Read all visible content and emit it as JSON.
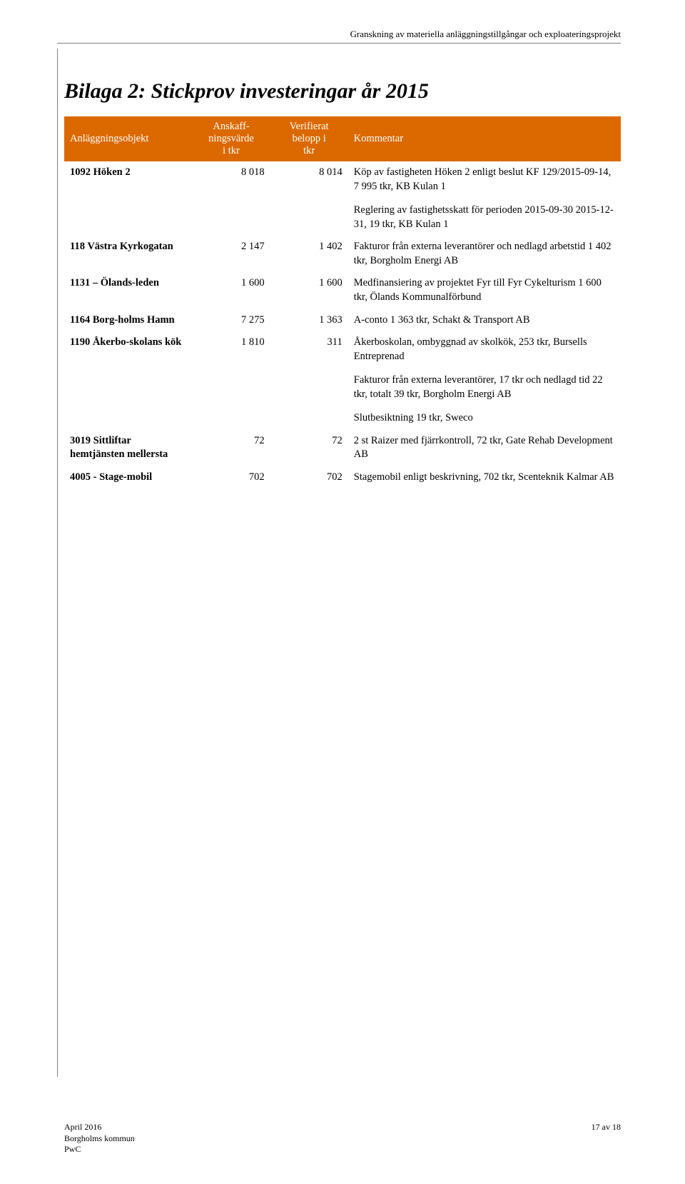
{
  "header": {
    "line": "Granskning av materiella anläggningstillgångar och exploateringsprojekt"
  },
  "title": "Bilaga 2: Stickprov investeringar år 2015",
  "colors": {
    "table_header_bg": "#dc6900",
    "table_header_fg": "#ffffff",
    "rule": "#808080",
    "text": "#000000",
    "background": "#ffffff"
  },
  "table": {
    "columns": [
      "Anläggningsobjekt",
      "Anskaff-\nningsvärde\ni tkr",
      "Verifierat\nbelopp i\ntkr",
      "Kommentar"
    ],
    "rows": [
      {
        "objekt": "1092 Höken 2",
        "anskaff": "8 018",
        "verif": "8 014",
        "kommentar_a": "Köp av fastigheten Höken 2 enligt beslut KF 129/2015-09-14, 7 995 tkr, KB Kulan 1",
        "kommentar_b": "Reglering av fastighetsskatt för perioden 2015-09-30 2015-12-31, 19 tkr, KB Kulan 1"
      },
      {
        "objekt": "118 Västra Kyrkogatan",
        "anskaff": "2 147",
        "verif": "1 402",
        "kommentar_a": "Fakturor från externa leverantörer och nedlagd arbetstid 1 402 tkr, Borgholm Energi AB"
      },
      {
        "objekt": "1131 – Ölands-leden",
        "anskaff": "1 600",
        "verif": "1 600",
        "kommentar_a": "Medfinansiering av projektet Fyr till Fyr Cykelturism 1 600 tkr, Ölands Kommunalförbund"
      },
      {
        "objekt": "1164 Borg-holms Hamn",
        "anskaff": "7 275",
        "verif": "1 363",
        "kommentar_a": "A-conto 1 363 tkr, Schakt & Transport AB"
      },
      {
        "objekt": "1190 Åkerbo-skolans kök",
        "anskaff": "1 810",
        "verif": "311",
        "kommentar_a": "Åkerboskolan, ombyggnad av skolkök, 253 tkr, Bursells Entreprenad",
        "kommentar_b": "Fakturor från externa leverantörer, 17 tkr och nedlagd tid 22 tkr, totalt 39 tkr, Borgholm Energi AB",
        "kommentar_c": "Slutbesiktning 19 tkr, Sweco"
      },
      {
        "objekt": "3019 Sittliftar hemtjänsten mellersta",
        "anskaff": "72",
        "verif": "72",
        "kommentar_a": "2 st Raizer med fjärrkontroll, 72 tkr, Gate Rehab Development AB"
      },
      {
        "objekt": "4005 - Stage-mobil",
        "anskaff": "702",
        "verif": "702",
        "kommentar_a": "Stagemobil enligt beskrivning, 702 tkr, Scenteknik Kalmar AB"
      }
    ]
  },
  "footer": {
    "date": "April 2016",
    "org": "Borgholms kommun",
    "firm": "PwC",
    "page": "17 av 18"
  }
}
